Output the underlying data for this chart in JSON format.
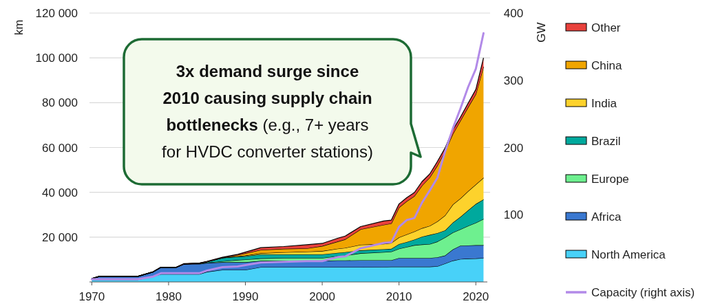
{
  "chart_data": {
    "type": "area",
    "stacked": true,
    "ylabel": "km",
    "y2label": "GW",
    "x": [
      1970,
      1971,
      1976,
      1978,
      1979,
      1981,
      1982,
      1984,
      1985,
      1987,
      1989,
      1990,
      1992,
      1995,
      1998,
      2000,
      2002,
      2003,
      2005,
      2008,
      2009,
      2010,
      2011,
      2012,
      2013,
      2014,
      2015,
      2016,
      2017,
      2018,
      2019,
      2020,
      2021
    ],
    "xlim": [
      1969.7,
      2021.5
    ],
    "xticks": [
      1970,
      1980,
      1990,
      2000,
      2010,
      2020
    ],
    "ylim": [
      0,
      120000
    ],
    "yticks": [
      {
        "value": 20000,
        "label": "20 000"
      },
      {
        "value": 40000,
        "label": "40 000"
      },
      {
        "value": 60000,
        "label": "60 000"
      },
      {
        "value": 80000,
        "label": "80 000"
      },
      {
        "value": 100000,
        "label": "100 000"
      },
      {
        "value": 120000,
        "label": "120 000"
      }
    ],
    "y2lim": [
      0,
      400
    ],
    "y2ticks": [
      100,
      200,
      300,
      400
    ],
    "grid": "y",
    "legend": "right",
    "series": [
      {
        "name": "North America",
        "color": "#48d1f8",
        "values": [
          1000,
          1000,
          1000,
          2500,
          3500,
          3500,
          3500,
          3500,
          4500,
          5400,
          5400,
          5400,
          6600,
          6600,
          6600,
          6600,
          6600,
          6600,
          6600,
          6700,
          6800,
          6800,
          6800,
          6800,
          6800,
          6800,
          7000,
          8200,
          9500,
          10200,
          10400,
          10500,
          10700
        ]
      },
      {
        "name": "Africa",
        "color": "#3a78d0",
        "values": [
          500,
          1500,
          1500,
          2000,
          3000,
          3000,
          4500,
          4500,
          4000,
          3400,
          3400,
          3400,
          2800,
          2800,
          2800,
          2800,
          3000,
          3000,
          3100,
          3000,
          2900,
          3900,
          3900,
          3900,
          3900,
          3900,
          4000,
          3600,
          5000,
          6000,
          5900,
          5900,
          5700
        ]
      },
      {
        "name": "Europe",
        "color": "#6ef08f",
        "values": [
          0,
          0,
          0,
          0,
          0,
          0,
          0,
          200,
          100,
          400,
          1000,
          1200,
          1100,
          1300,
          1300,
          1300,
          1900,
          2200,
          3100,
          3600,
          3800,
          4100,
          4900,
          5700,
          6000,
          6200,
          7000,
          8100,
          7500,
          7300,
          8700,
          10000,
          11700
        ]
      },
      {
        "name": "Brazil",
        "color": "#00a99d",
        "values": [
          0,
          0,
          0,
          0,
          0,
          0,
          0,
          100,
          400,
          1600,
          1500,
          1500,
          1800,
          1600,
          1600,
          1600,
          1500,
          1500,
          1300,
          1300,
          1300,
          2100,
          2200,
          2500,
          3500,
          4100,
          3800,
          3100,
          4500,
          5600,
          7000,
          8400,
          8700
        ]
      },
      {
        "name": "India",
        "color": "#fdd22c",
        "values": [
          0,
          0,
          0,
          0,
          0,
          0,
          0,
          0,
          0,
          0,
          100,
          300,
          500,
          900,
          1200,
          1500,
          1800,
          1900,
          2500,
          2400,
          2600,
          3000,
          3400,
          3600,
          3800,
          4000,
          5200,
          6700,
          8000,
          8200,
          8500,
          8700,
          9700
        ]
      },
      {
        "name": "China",
        "color": "#f0a500",
        "values": [
          0,
          0,
          0,
          0,
          0,
          0,
          0,
          0,
          0,
          0,
          600,
          1000,
          1500,
          1600,
          1500,
          2200,
          3200,
          3800,
          6900,
          8500,
          8700,
          13300,
          14800,
          15800,
          19000,
          21600,
          25000,
          28600,
          31500,
          34700,
          37500,
          40300,
          49500
        ]
      },
      {
        "name": "Other",
        "color": "#e8413c",
        "values": [
          0,
          0,
          0,
          100,
          100,
          100,
          200,
          100,
          200,
          200,
          300,
          500,
          1000,
          1000,
          1600,
          1200,
          1500,
          1500,
          1200,
          1700,
          1500,
          1600,
          1600,
          1600,
          1800,
          1600,
          1800,
          1500,
          1800,
          1600,
          1800,
          2100,
          4000
        ]
      },
      {
        "name": "Capacity (right axis)",
        "type": "line",
        "axis": "y2",
        "color": "#b28ae8",
        "values": [
          4,
          4,
          4,
          8,
          13,
          13,
          13,
          13,
          17,
          22,
          23,
          25,
          29,
          30,
          31,
          31,
          37,
          38,
          50,
          58,
          59,
          82,
          92,
          95,
          118,
          136,
          155,
          194,
          228,
          258,
          290,
          317,
          370
        ]
      }
    ],
    "annotations": [
      "3x demand surge since 2010 causing supply chain bottlenecks",
      "(e.g., 7+ years for HVDC converter stations)"
    ]
  }
}
